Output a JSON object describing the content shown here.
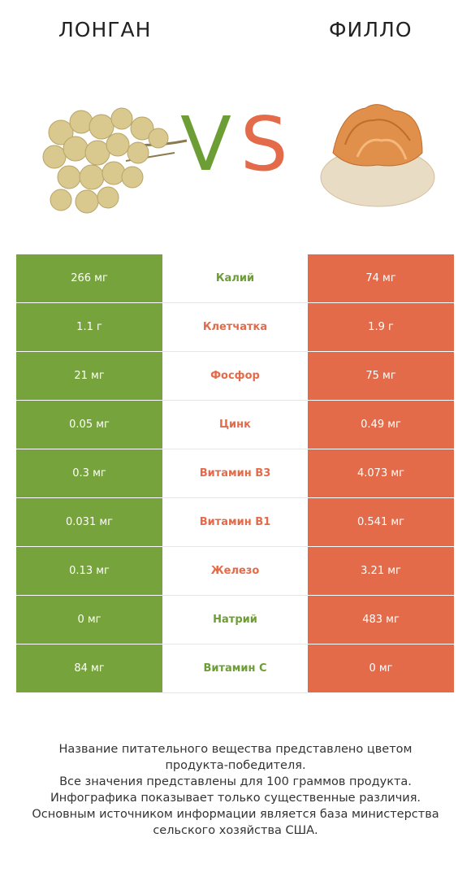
{
  "header": {
    "left_title": "ЛОНГАН",
    "right_title": "ФИЛЛО",
    "vs_v": "V",
    "vs_s": "S"
  },
  "colors": {
    "left_winner": "#76a33b",
    "right_winner": "#e36b4a"
  },
  "rows": [
    {
      "left": "266 мг",
      "nutrient": "Калий",
      "right": "74 мг",
      "winner": "left"
    },
    {
      "left": "1.1 г",
      "nutrient": "Клетчатка",
      "right": "1.9 г",
      "winner": "right"
    },
    {
      "left": "21 мг",
      "nutrient": "Фосфор",
      "right": "75 мг",
      "winner": "right"
    },
    {
      "left": "0.05 мг",
      "nutrient": "Цинк",
      "right": "0.49 мг",
      "winner": "right"
    },
    {
      "left": "0.3 мг",
      "nutrient": "Витамин B3",
      "right": "4.073 мг",
      "winner": "right"
    },
    {
      "left": "0.031 мг",
      "nutrient": "Витамин B1",
      "right": "0.541 мг",
      "winner": "right"
    },
    {
      "left": "0.13 мг",
      "nutrient": "Железо",
      "right": "3.21 мг",
      "winner": "right"
    },
    {
      "left": "0 мг",
      "nutrient": "Натрий",
      "right": "483 мг",
      "winner": "left"
    },
    {
      "left": "84 мг",
      "nutrient": "Витамин C",
      "right": "0 мг",
      "winner": "left"
    }
  ],
  "footnote": [
    "Название питательного вещества представлено цветом",
    "продукта-победителя.",
    "Все значения представлены для 100 граммов продукта.",
    "Инфографика показывает только существенные различия.",
    "Основным источником информации является база министерства",
    "сельского хозяйства США."
  ]
}
